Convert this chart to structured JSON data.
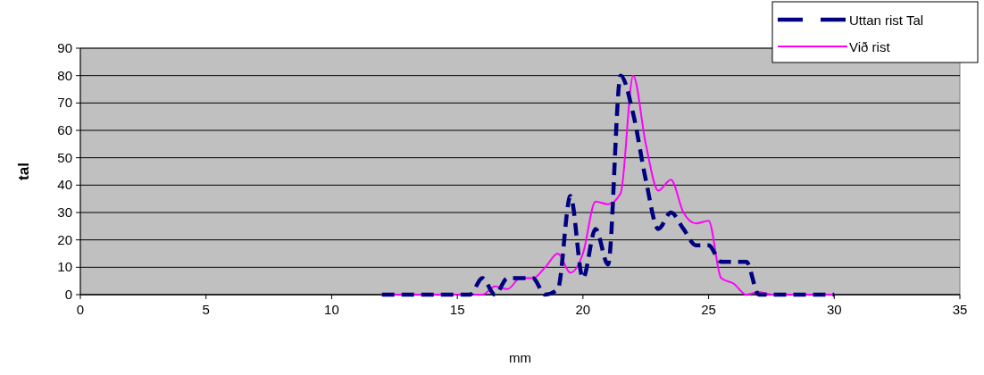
{
  "chart_data": {
    "type": "line",
    "xlabel": "mm",
    "ylabel": "tal",
    "xlim": [
      0,
      35
    ],
    "xticks": [
      0,
      5,
      10,
      15,
      20,
      25,
      30,
      35
    ],
    "ylim": [
      0,
      90
    ],
    "yticks": [
      0,
      10,
      20,
      30,
      40,
      50,
      60,
      70,
      80,
      90
    ],
    "grid": "y",
    "legend": "top right",
    "x": [
      12,
      12.5,
      13,
      13.5,
      14,
      14.5,
      15,
      15.5,
      16,
      16.5,
      17,
      17.5,
      18,
      18.5,
      19,
      19.5,
      20,
      20.5,
      21,
      21.5,
      22,
      22.5,
      23,
      23.5,
      24,
      24.5,
      25,
      25.5,
      26,
      26.5,
      27,
      27.5,
      28,
      28.5,
      29,
      29.5,
      30
    ],
    "series": [
      {
        "name": "Uttan rist Tal",
        "color": "#000080",
        "line_style": "dashed",
        "values": [
          0,
          0,
          0,
          0,
          0,
          0,
          0,
          0,
          6,
          0,
          6,
          6,
          6,
          0,
          2,
          36,
          6,
          24,
          11,
          80,
          66,
          42,
          24,
          30,
          24,
          18,
          18,
          12,
          12,
          12,
          0,
          0,
          0,
          0,
          0,
          0,
          0
        ]
      },
      {
        "name": "Við rist",
        "color": "#ff00ff",
        "line_style": "solid",
        "values": [
          0,
          0,
          0,
          0,
          0,
          0,
          0,
          0,
          0,
          3,
          2,
          6,
          6,
          10,
          15,
          8,
          15,
          34,
          33,
          37,
          80,
          55,
          38,
          42,
          30,
          26,
          27,
          6,
          4,
          0,
          1,
          0,
          0,
          0,
          0,
          0,
          0
        ]
      }
    ]
  }
}
